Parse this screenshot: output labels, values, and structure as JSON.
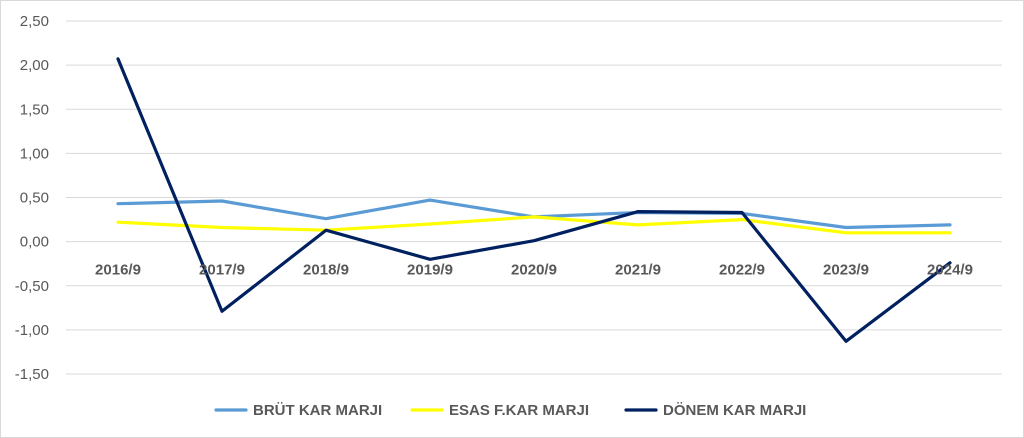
{
  "chart_data": {
    "type": "line",
    "title": "",
    "xlabel": "",
    "ylabel": "",
    "categories": [
      "2016/9",
      "2017/9",
      "2018/9",
      "2019/9",
      "2020/9",
      "2021/9",
      "2022/9",
      "2023/9",
      "2024/9"
    ],
    "ylim": [
      -1.5,
      2.5
    ],
    "yticks": [
      "2,50",
      "2,00",
      "1,50",
      "1,00",
      "0,50",
      "0,00",
      "-0,50",
      "-1,00",
      "-1,50"
    ],
    "ytick_values": [
      2.5,
      2.0,
      1.5,
      1.0,
      0.5,
      0.0,
      -0.5,
      -1.0,
      -1.5
    ],
    "grid": true,
    "legend_position": "bottom",
    "series": [
      {
        "name": "BRÜT KAR MARJI",
        "color": "#5b9bd5",
        "values": [
          0.43,
          0.46,
          0.26,
          0.47,
          0.28,
          0.33,
          0.32,
          0.16,
          0.19
        ]
      },
      {
        "name": "ESAS F.KAR MARJI",
        "color": "#ffff00",
        "values": [
          0.22,
          0.16,
          0.13,
          0.2,
          0.28,
          0.19,
          0.25,
          0.1,
          0.1
        ]
      },
      {
        "name": "DÖNEM KAR MARJI",
        "color": "#002060",
        "values": [
          2.07,
          -0.79,
          0.13,
          -0.2,
          0.01,
          0.34,
          0.33,
          -1.13,
          -0.24
        ]
      }
    ]
  }
}
